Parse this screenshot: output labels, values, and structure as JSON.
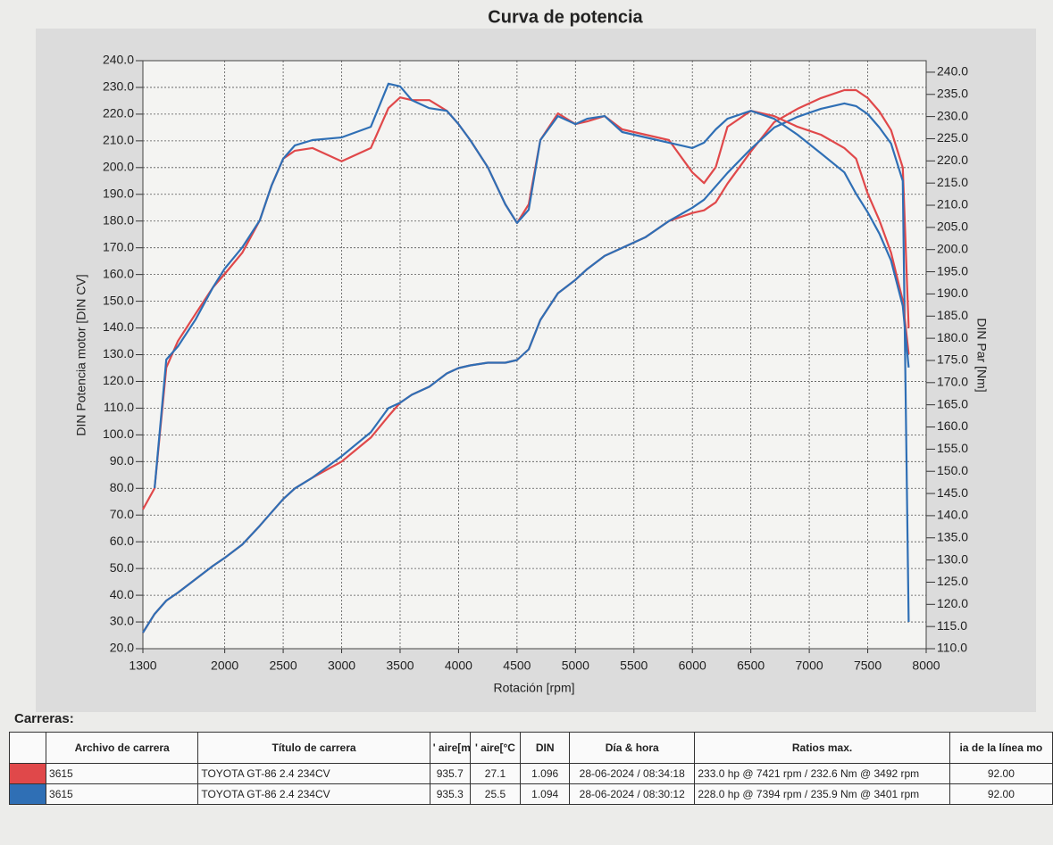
{
  "chart_data": {
    "type": "line",
    "title": "Curva de potencia",
    "xlabel": "Rotación [rpm]",
    "ylabel": "DIN Potencia motor [DIN CV]",
    "y2label": "DIN Par [Nm]",
    "x": [
      1300,
      1400,
      1500,
      1600,
      1750,
      1900,
      2000,
      2150,
      2300,
      2400,
      2500,
      2600,
      2750,
      3000,
      3250,
      3400,
      3500,
      3600,
      3750,
      3900,
      4000,
      4100,
      4250,
      4400,
      4500,
      4600,
      4700,
      4850,
      5000,
      5100,
      5250,
      5400,
      5600,
      5800,
      6000,
      6100,
      6200,
      6300,
      6500,
      6700,
      6900,
      7100,
      7300,
      7400,
      7500,
      7600,
      7700,
      7800,
      7850
    ],
    "xlim": [
      1300,
      8000
    ],
    "xticks": [
      1300,
      2000,
      2500,
      3000,
      3500,
      4000,
      4500,
      5000,
      5500,
      6000,
      6500,
      7000,
      7500,
      8000
    ],
    "ylim": [
      20,
      240
    ],
    "yticks": [
      {
        "value": 20,
        "label": "20.0"
      },
      {
        "value": 30,
        "label": "30.0"
      },
      {
        "value": 40,
        "label": "40.0"
      },
      {
        "value": 50,
        "label": "50.0"
      },
      {
        "value": 60,
        "label": "60.0"
      },
      {
        "value": 70,
        "label": "70.0"
      },
      {
        "value": 80,
        "label": "80.0"
      },
      {
        "value": 90,
        "label": "90.0"
      },
      {
        "value": 100,
        "label": "100.0"
      },
      {
        "value": 110,
        "label": "110.0"
      },
      {
        "value": 120,
        "label": "120.0"
      },
      {
        "value": 130,
        "label": "130.0"
      },
      {
        "value": 140,
        "label": "140.0"
      },
      {
        "value": 150,
        "label": "150.0"
      },
      {
        "value": 160,
        "label": "160.0"
      },
      {
        "value": 170,
        "label": "170.0"
      },
      {
        "value": 180,
        "label": "180.0"
      },
      {
        "value": 190,
        "label": "190.0"
      },
      {
        "value": 200,
        "label": "200.0"
      },
      {
        "value": 210,
        "label": "210.0"
      },
      {
        "value": 220,
        "label": "220.0"
      },
      {
        "value": 230,
        "label": "230.0"
      },
      {
        "value": 240,
        "label": "240.0"
      }
    ],
    "y2lim": [
      110,
      242.6
    ],
    "y2ticks": [
      {
        "value": 110,
        "label": "110.0"
      },
      {
        "value": 115,
        "label": "115.0"
      },
      {
        "value": 120,
        "label": "120.0"
      },
      {
        "value": 125,
        "label": "125.0"
      },
      {
        "value": 130,
        "label": "130.0"
      },
      {
        "value": 135,
        "label": "135.0"
      },
      {
        "value": 140,
        "label": "140.0"
      },
      {
        "value": 145,
        "label": "145.0"
      },
      {
        "value": 150,
        "label": "150.0"
      },
      {
        "value": 155,
        "label": "155.0"
      },
      {
        "value": 160,
        "label": "160.0"
      },
      {
        "value": 165,
        "label": "165.0"
      },
      {
        "value": 170,
        "label": "170.0"
      },
      {
        "value": 175,
        "label": "175.0"
      },
      {
        "value": 180,
        "label": "180.0"
      },
      {
        "value": 185,
        "label": "185.0"
      },
      {
        "value": 190,
        "label": "190.0"
      },
      {
        "value": 195,
        "label": "195.0"
      },
      {
        "value": 200,
        "label": "200.0"
      },
      {
        "value": 205,
        "label": "205.0"
      },
      {
        "value": 210,
        "label": "210.0"
      },
      {
        "value": 215,
        "label": "215.0"
      },
      {
        "value": 220,
        "label": "220.0"
      },
      {
        "value": 225,
        "label": "225.0"
      },
      {
        "value": 230,
        "label": "230.0"
      },
      {
        "value": 235,
        "label": "235.0"
      },
      {
        "value": 240,
        "label": "240.0"
      }
    ],
    "grid": true,
    "series": [
      {
        "color": "#e0484a",
        "axis": "y",
        "values": [
          26,
          33,
          38,
          41,
          46,
          51,
          54,
          59,
          66,
          71,
          76,
          80,
          84,
          90,
          99,
          107,
          112,
          115,
          118,
          123,
          125,
          126,
          127,
          127,
          128,
          132,
          143,
          153,
          158,
          162,
          167,
          170,
          174,
          180,
          183,
          184,
          187,
          194,
          206,
          217,
          222,
          226,
          229,
          229,
          226,
          221,
          214,
          200,
          140
        ]
      },
      {
        "color": "#2f6fb5",
        "axis": "y",
        "values": [
          26,
          33,
          38,
          41,
          46,
          51,
          54,
          59,
          66,
          71,
          76,
          80,
          84,
          92,
          101,
          110,
          112,
          115,
          118,
          123,
          125,
          126,
          127,
          127,
          128,
          132,
          143,
          153,
          158,
          162,
          167,
          170,
          174,
          180,
          185,
          188,
          193,
          198,
          207,
          215,
          219,
          222,
          224,
          223,
          220,
          215,
          209,
          195,
          30
        ]
      },
      {
        "color": "#e0484a",
        "axis": "y2",
        "values": [
          141.4,
          146.2,
          173.4,
          179.4,
          185.5,
          191.5,
          194.5,
          199.3,
          206.6,
          214.4,
          220.5,
          222.3,
          222.9,
          219.9,
          222.9,
          231.9,
          234.3,
          233.7,
          233.7,
          231.3,
          228.3,
          224.7,
          218.6,
          210.2,
          206.0,
          210.2,
          224.7,
          230.7,
          228.3,
          228.9,
          230.1,
          227.1,
          225.9,
          224.7,
          217.4,
          215.0,
          218.6,
          227.7,
          231.3,
          230.1,
          227.7,
          225.9,
          222.9,
          220.5,
          212.6,
          206.6,
          199.3,
          188.5,
          176.4
        ]
      },
      {
        "color": "#2f6fb5",
        "axis": "y2",
        "values": [
          null,
          146.2,
          175.2,
          178.2,
          184.2,
          191.5,
          195.7,
          200.5,
          206.6,
          214.4,
          220.5,
          223.5,
          224.7,
          225.3,
          227.7,
          237.4,
          236.8,
          233.7,
          231.9,
          231.3,
          228.3,
          224.7,
          218.6,
          210.2,
          206.0,
          209.0,
          224.7,
          230.1,
          228.3,
          229.5,
          230.1,
          226.5,
          225.3,
          224.1,
          222.9,
          224.1,
          227.1,
          229.5,
          231.3,
          229.5,
          225.9,
          221.7,
          217.4,
          212.6,
          208.4,
          203.6,
          197.5,
          187.3,
          173.4
        ]
      }
    ]
  },
  "table": {
    "title": "Carreras:",
    "header": [
      "Archivo de carrera",
      "Título de carrera",
      "' aire[mBar",
      "' aire[°C",
      "DIN",
      "Día & hora",
      "Ratios max.",
      "ia de la línea mo"
    ],
    "rows": [
      {
        "color": "#e0484a",
        "cells": [
          "3615",
          "TOYOTA GT-86 2.4 234CV",
          "935.7",
          "27.1",
          "1.096",
          "28-06-2024 / 08:34:18",
          "233.0 hp @ 7421 rpm / 232.6 Nm @ 3492 rpm",
          "92.00"
        ]
      },
      {
        "color": "#2f6fb5",
        "cells": [
          "3615",
          "TOYOTA GT-86 2.4 234CV",
          "935.3",
          "25.5",
          "1.094",
          "28-06-2024 / 08:30:12",
          "228.0 hp @ 7394 rpm / 235.9 Nm @ 3401 rpm",
          "92.00"
        ]
      }
    ]
  }
}
